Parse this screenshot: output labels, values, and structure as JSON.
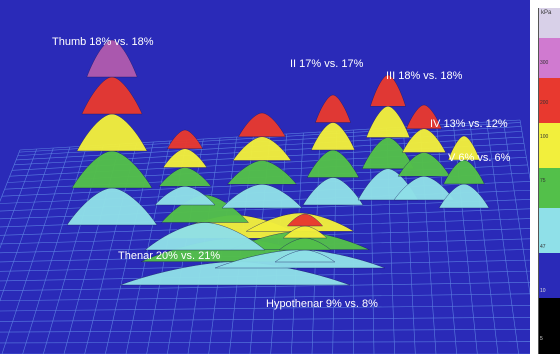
{
  "regions": [
    {
      "id": "thumb",
      "label": "Thumb 18% vs. 18%"
    },
    {
      "id": "ii",
      "label": "II 17% vs. 17%"
    },
    {
      "id": "iii",
      "label": "III 18% vs. 18%"
    },
    {
      "id": "iv",
      "label": "IV 13% vs. 12%"
    },
    {
      "id": "v",
      "label": "V 6% vs. 6%"
    },
    {
      "id": "thenar",
      "label": "Thenar 20% vs. 21%"
    },
    {
      "id": "hypothenar",
      "label": "Hypothenar 9% vs. 8%"
    }
  ],
  "scale": {
    "unit": "kPa",
    "ticks": [
      "300",
      "200",
      "100",
      "75",
      "47",
      "10",
      "5"
    ]
  },
  "colors": {
    "background": "#2a2ab8",
    "grid": "#5a7ee0",
    "level_1": "#8fe0e8",
    "level_2": "#53c04a",
    "level_3": "#f2ef3c",
    "level_4": "#e8392f",
    "level_5": "#b05aae"
  }
}
